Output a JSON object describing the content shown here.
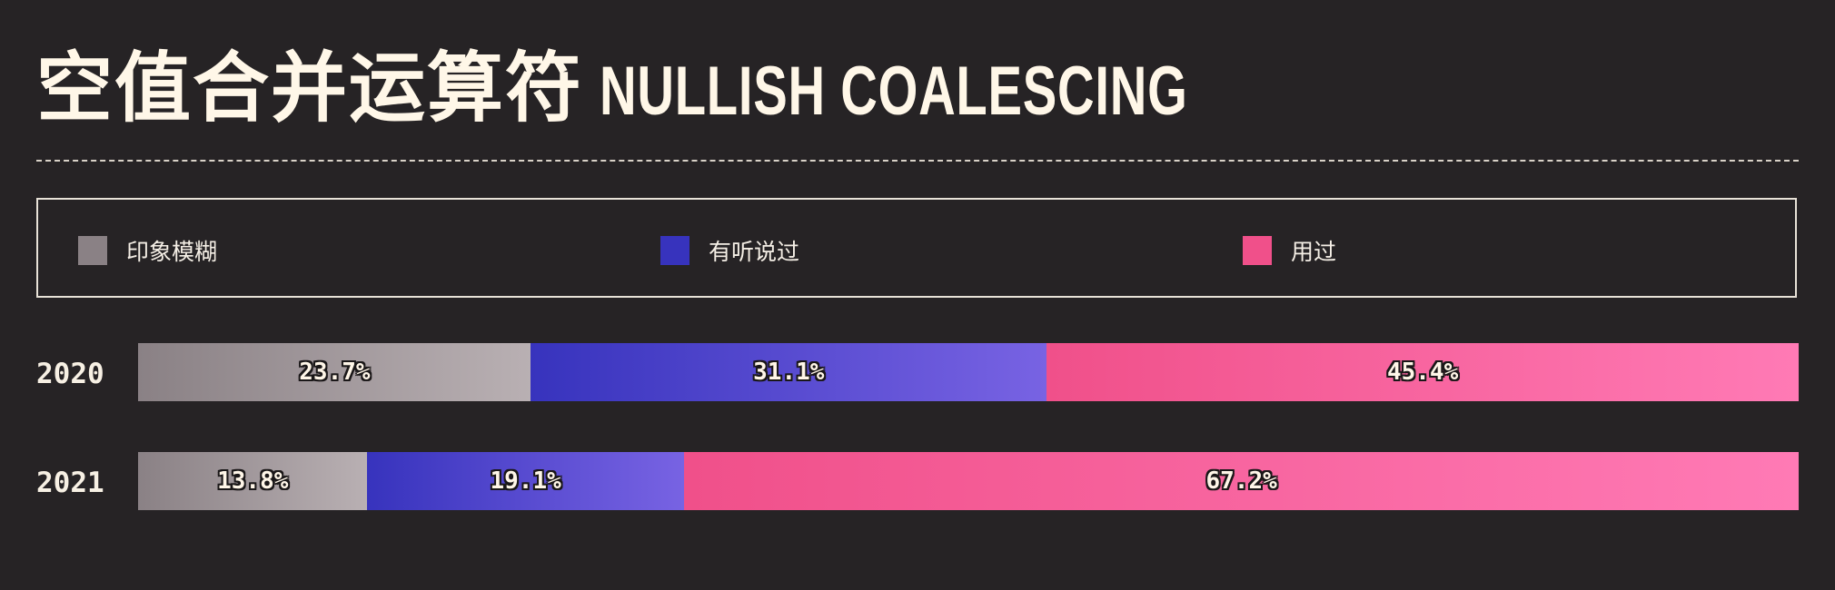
{
  "title": {
    "zh": "空值合并运算符",
    "en": "NULLISH COALESCING"
  },
  "legend": [
    {
      "label": "印象模糊",
      "color": "#8a8185"
    },
    {
      "label": "有听说过",
      "color": "#3733bd"
    },
    {
      "label": "用过",
      "color": "#f0508a"
    }
  ],
  "chart_data": {
    "type": "bar",
    "orientation": "horizontal",
    "stacked": true,
    "normalized": true,
    "categories": [
      "2020",
      "2021"
    ],
    "series": [
      {
        "name": "印象模糊",
        "values": [
          23.7,
          13.8
        ],
        "labels": [
          "23.7%",
          "13.8%"
        ],
        "gradient": [
          "#8a8185",
          "#b9b0b3"
        ]
      },
      {
        "name": "有听说过",
        "values": [
          31.1,
          19.1
        ],
        "labels": [
          "31.1%",
          "19.1%"
        ],
        "gradient": [
          "#3733bd",
          "#7863e3"
        ]
      },
      {
        "name": "用过",
        "values": [
          45.4,
          67.2
        ],
        "labels": [
          "45.4%",
          "67.2%"
        ],
        "gradient": [
          "#f0508a",
          "#ff7ab5"
        ]
      }
    ],
    "legend_position": "top",
    "grid": false
  }
}
